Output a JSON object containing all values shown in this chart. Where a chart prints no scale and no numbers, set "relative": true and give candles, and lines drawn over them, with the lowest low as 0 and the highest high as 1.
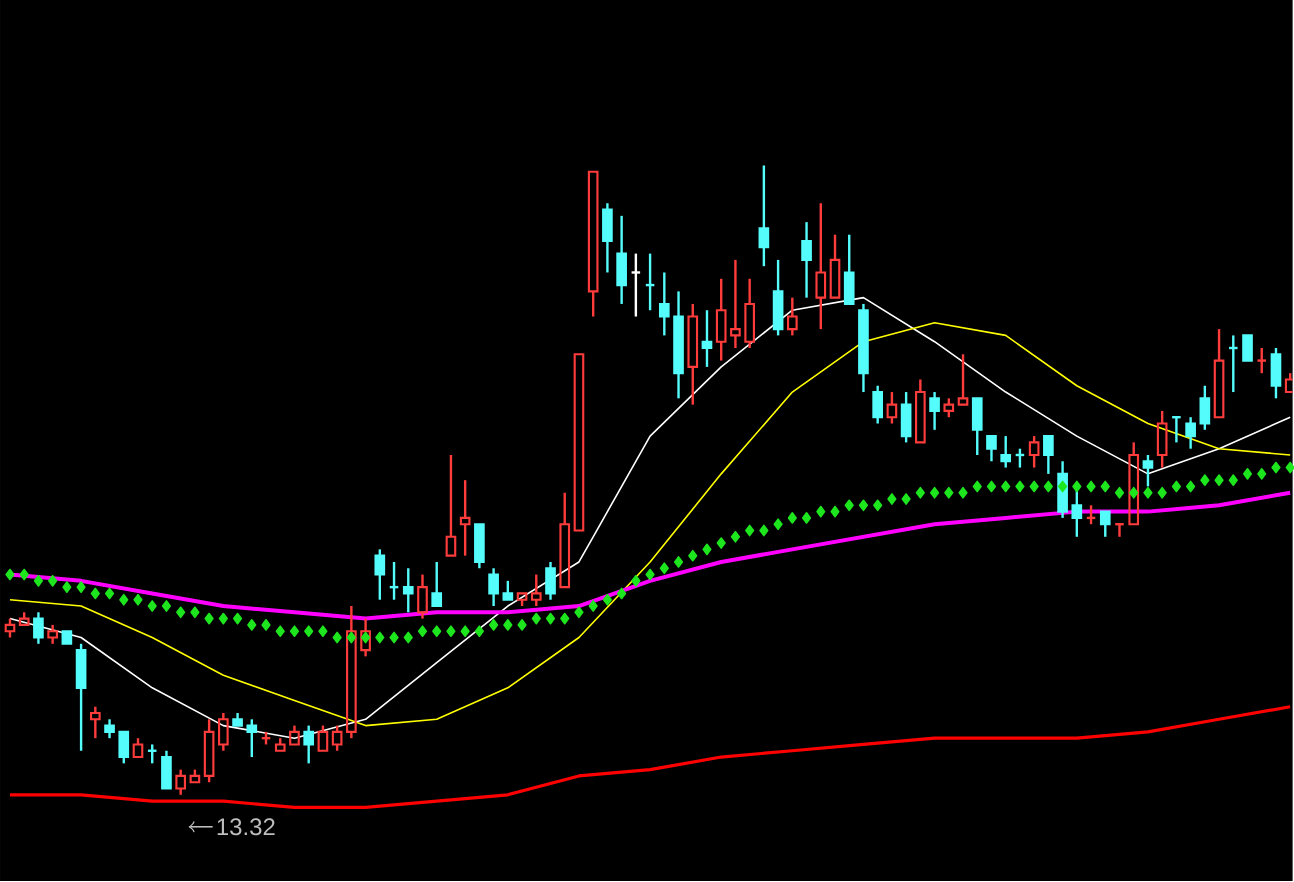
{
  "chart_data": {
    "type": "candlestick",
    "relative": true,
    "categories": [
      null,
      null,
      null,
      null,
      null,
      null,
      null,
      null,
      null,
      null,
      null,
      null,
      null,
      null,
      null,
      null,
      null,
      null,
      null,
      null,
      null,
      null,
      null,
      null,
      null,
      null,
      null,
      null,
      null,
      null,
      null,
      null,
      null,
      null,
      null,
      null,
      null,
      null,
      null,
      null,
      null,
      null,
      null,
      null,
      null,
      null,
      null,
      null,
      null,
      null,
      null,
      null,
      null,
      null,
      null,
      null,
      null,
      null,
      null,
      null,
      null,
      null,
      null,
      null,
      null,
      null,
      null,
      null,
      null,
      null,
      null,
      null,
      null,
      null,
      null,
      null,
      null,
      null,
      null,
      null,
      null,
      null,
      null,
      null,
      null,
      null,
      null,
      null,
      null,
      null,
      null
    ],
    "ohlc": [
      [
        0.26,
        0.28,
        0.25,
        0.27
      ],
      [
        0.27,
        0.29,
        0.27,
        0.28
      ],
      [
        0.28,
        0.29,
        0.24,
        0.25
      ],
      [
        0.25,
        0.27,
        0.24,
        0.26
      ],
      [
        0.26,
        0.26,
        0.24,
        0.24
      ],
      [
        0.23,
        0.24,
        0.07,
        0.17
      ],
      [
        0.12,
        0.14,
        0.09,
        0.13
      ],
      [
        0.11,
        0.12,
        0.09,
        0.1
      ],
      [
        0.1,
        0.1,
        0.05,
        0.06
      ],
      [
        0.06,
        0.09,
        0.06,
        0.08
      ],
      [
        0.07,
        0.08,
        0.05,
        0.07
      ],
      [
        0.06,
        0.07,
        0.01,
        0.01
      ],
      [
        0.01,
        0.04,
        0.0,
        0.03
      ],
      [
        0.02,
        0.04,
        0.02,
        0.03
      ],
      [
        0.03,
        0.12,
        0.02,
        0.1
      ],
      [
        0.08,
        0.13,
        0.07,
        0.12
      ],
      [
        0.12,
        0.13,
        0.11,
        0.11
      ],
      [
        0.11,
        0.12,
        0.06,
        0.1
      ],
      [
        0.09,
        0.1,
        0.08,
        0.09
      ],
      [
        0.07,
        0.09,
        0.07,
        0.08
      ],
      [
        0.08,
        0.11,
        0.08,
        0.1
      ],
      [
        0.1,
        0.11,
        0.05,
        0.08
      ],
      [
        0.07,
        0.11,
        0.07,
        0.1
      ],
      [
        0.08,
        0.11,
        0.07,
        0.1
      ],
      [
        0.1,
        0.3,
        0.09,
        0.26
      ],
      [
        0.23,
        0.28,
        0.22,
        0.26
      ],
      [
        0.38,
        0.39,
        0.31,
        0.35
      ],
      [
        0.33,
        0.37,
        0.31,
        0.33
      ],
      [
        0.33,
        0.36,
        0.29,
        0.32
      ],
      [
        0.29,
        0.35,
        0.28,
        0.33
      ],
      [
        0.32,
        0.37,
        0.3,
        0.3
      ],
      [
        0.38,
        0.54,
        0.38,
        0.41
      ],
      [
        0.43,
        0.5,
        0.38,
        0.44
      ],
      [
        0.43,
        0.43,
        0.36,
        0.37
      ],
      [
        0.35,
        0.36,
        0.3,
        0.32
      ],
      [
        0.32,
        0.34,
        0.31,
        0.31
      ],
      [
        0.31,
        0.32,
        0.3,
        0.32
      ],
      [
        0.31,
        0.35,
        0.3,
        0.32
      ],
      [
        0.36,
        0.37,
        0.31,
        0.32
      ],
      [
        0.33,
        0.48,
        0.33,
        0.43
      ],
      [
        0.42,
        0.7,
        0.42,
        0.7
      ],
      [
        0.8,
        0.99,
        0.76,
        0.99
      ],
      [
        0.93,
        0.94,
        0.83,
        0.88
      ],
      [
        0.86,
        0.92,
        0.78,
        0.81
      ],
      [
        0.83,
        0.86,
        0.76,
        0.83
      ],
      [
        0.81,
        0.86,
        0.77,
        0.81
      ],
      [
        0.78,
        0.83,
        0.73,
        0.76
      ],
      [
        0.76,
        0.8,
        0.63,
        0.67
      ],
      [
        0.68,
        0.78,
        0.62,
        0.76
      ],
      [
        0.72,
        0.77,
        0.68,
        0.71
      ],
      [
        0.72,
        0.82,
        0.69,
        0.77
      ],
      [
        0.73,
        0.85,
        0.71,
        0.74
      ],
      [
        0.72,
        0.82,
        0.71,
        0.78
      ],
      [
        0.9,
        1.0,
        0.84,
        0.87
      ],
      [
        0.8,
        0.85,
        0.73,
        0.74
      ],
      [
        0.74,
        0.79,
        0.73,
        0.76
      ],
      [
        0.88,
        0.91,
        0.79,
        0.85
      ],
      [
        0.79,
        0.94,
        0.74,
        0.83
      ],
      [
        0.79,
        0.89,
        0.79,
        0.85
      ],
      [
        0.83,
        0.89,
        0.78,
        0.78
      ],
      [
        0.77,
        0.78,
        0.64,
        0.67
      ],
      [
        0.64,
        0.65,
        0.59,
        0.6
      ],
      [
        0.6,
        0.64,
        0.59,
        0.62
      ],
      [
        0.62,
        0.64,
        0.56,
        0.57
      ],
      [
        0.56,
        0.66,
        0.56,
        0.64
      ],
      [
        0.63,
        0.64,
        0.58,
        0.61
      ],
      [
        0.61,
        0.63,
        0.6,
        0.62
      ],
      [
        0.62,
        0.7,
        0.62,
        0.63
      ],
      [
        0.63,
        0.63,
        0.54,
        0.58
      ],
      [
        0.57,
        0.57,
        0.53,
        0.55
      ],
      [
        0.54,
        0.57,
        0.52,
        0.53
      ],
      [
        0.54,
        0.55,
        0.52,
        0.54
      ],
      [
        0.54,
        0.57,
        0.52,
        0.56
      ],
      [
        0.57,
        0.57,
        0.51,
        0.54
      ],
      [
        0.51,
        0.53,
        0.44,
        0.45
      ],
      [
        0.46,
        0.49,
        0.41,
        0.44
      ],
      [
        0.44,
        0.46,
        0.43,
        0.44
      ],
      [
        0.45,
        0.45,
        0.41,
        0.43
      ],
      [
        0.43,
        0.43,
        0.41,
        0.43
      ],
      [
        0.43,
        0.56,
        0.43,
        0.54
      ],
      [
        0.53,
        0.54,
        0.49,
        0.52
      ],
      [
        0.54,
        0.61,
        0.52,
        0.59
      ],
      [
        0.6,
        0.6,
        0.56,
        0.6
      ],
      [
        0.59,
        0.6,
        0.55,
        0.57
      ],
      [
        0.63,
        0.65,
        0.58,
        0.59
      ],
      [
        0.6,
        0.74,
        0.6,
        0.69
      ],
      [
        0.71,
        0.73,
        0.64,
        0.71
      ],
      [
        0.73,
        0.73,
        0.69,
        0.69
      ],
      [
        0.69,
        0.71,
        0.67,
        0.69
      ],
      [
        0.7,
        0.71,
        0.63,
        0.65
      ],
      [
        0.64,
        0.67,
        0.64,
        0.66
      ]
    ],
    "colors": [
      "#ff3c3c",
      "#ff3c3c",
      "#54fcfc",
      "#ff3c3c",
      "#54fcfc",
      "#54fcfc",
      "#ff3c3c",
      "#54fcfc",
      "#54fcfc",
      "#ff3c3c",
      "#54fcfc",
      "#54fcfc",
      "#ff3c3c",
      "#ff3c3c",
      "#ff3c3c",
      "#ff3c3c",
      "#54fcfc",
      "#54fcfc",
      "#ff3c3c",
      "#ff3c3c",
      "#ff3c3c",
      "#54fcfc",
      "#ff3c3c",
      "#ff3c3c",
      "#ff3c3c",
      "#ff3c3c",
      "#54fcfc",
      "#54fcfc",
      "#54fcfc",
      "#ff3c3c",
      "#54fcfc",
      "#ff3c3c",
      "#ff3c3c",
      "#54fcfc",
      "#54fcfc",
      "#54fcfc",
      "#ff3c3c",
      "#ff3c3c",
      "#54fcfc",
      "#ff3c3c",
      "#ff3c3c",
      "#ff3c3c",
      "#54fcfc",
      "#54fcfc",
      "#ffffff",
      "#54fcfc",
      "#54fcfc",
      "#54fcfc",
      "#ff3c3c",
      "#54fcfc",
      "#ff3c3c",
      "#ff3c3c",
      "#ff3c3c",
      "#54fcfc",
      "#54fcfc",
      "#ff3c3c",
      "#54fcfc",
      "#ff3c3c",
      "#ff3c3c",
      "#54fcfc",
      "#54fcfc",
      "#54fcfc",
      "#ff3c3c",
      "#54fcfc",
      "#ff3c3c",
      "#54fcfc",
      "#ff3c3c",
      "#ff3c3c",
      "#54fcfc",
      "#54fcfc",
      "#54fcfc",
      "#54fcfc",
      "#ff3c3c",
      "#54fcfc",
      "#54fcfc",
      "#54fcfc",
      "#ff3c3c",
      "#54fcfc",
      "#ff3c3c",
      "#ff3c3c",
      "#54fcfc",
      "#ff3c3c",
      "#54fcfc",
      "#54fcfc",
      "#54fcfc",
      "#ff3c3c",
      "#54fcfc",
      "#54fcfc",
      "#ff3c3c",
      "#54fcfc",
      "#ff3c3c"
    ],
    "series": [
      {
        "type": "line",
        "color": "#ffffff",
        "values": [
          0.28,
          null,
          null,
          null,
          null,
          0.25,
          null,
          null,
          null,
          null,
          0.17,
          null,
          null,
          null,
          null,
          0.11,
          null,
          null,
          null,
          null,
          0.09,
          null,
          null,
          null,
          null,
          0.12,
          null,
          null,
          null,
          null,
          0.21,
          null,
          null,
          null,
          null,
          0.3,
          null,
          null,
          null,
          null,
          0.37,
          0.41,
          null,
          0.49,
          null,
          0.57,
          null,
          null,
          null,
          null,
          0.68,
          null,
          null,
          null,
          null,
          0.77,
          null,
          null,
          null,
          null,
          0.79,
          null,
          null,
          null,
          null,
          0.72,
          null,
          null,
          null,
          null,
          0.64,
          null,
          null,
          null,
          null,
          0.57,
          null,
          null,
          null,
          null,
          0.51,
          null,
          null,
          null,
          null,
          0.55,
          null,
          null,
          null,
          null,
          0.6
        ]
      },
      {
        "type": "line",
        "color": "#ffff00",
        "values": [
          0.31,
          null,
          null,
          null,
          null,
          0.3,
          null,
          null,
          null,
          null,
          0.25,
          null,
          null,
          null,
          null,
          0.19,
          null,
          null,
          null,
          null,
          0.15,
          null,
          null,
          null,
          null,
          0.11,
          null,
          null,
          null,
          null,
          0.12,
          null,
          null,
          null,
          null,
          0.17,
          null,
          null,
          null,
          null,
          0.25,
          null,
          null,
          null,
          null,
          0.37,
          null,
          null,
          null,
          null,
          0.51,
          null,
          null,
          null,
          null,
          0.64,
          null,
          null,
          null,
          null,
          0.72,
          null,
          null,
          null,
          null,
          0.75,
          null,
          null,
          null,
          null,
          0.73,
          null,
          null,
          null,
          null,
          0.65,
          null,
          null,
          null,
          null,
          0.59,
          null,
          null,
          null,
          null,
          0.55,
          null,
          null,
          null,
          null,
          0.54
        ]
      },
      {
        "type": "line",
        "color": "#ff00ff",
        "values": [
          0.35,
          null,
          null,
          null,
          null,
          0.34,
          null,
          null,
          null,
          null,
          0.32,
          null,
          null,
          null,
          null,
          0.3,
          null,
          null,
          null,
          null,
          0.29,
          null,
          null,
          null,
          null,
          0.28,
          null,
          null,
          null,
          null,
          0.29,
          null,
          null,
          null,
          null,
          0.29,
          null,
          null,
          null,
          null,
          0.3,
          null,
          null,
          null,
          null,
          0.34,
          null,
          null,
          null,
          null,
          0.37,
          null,
          null,
          null,
          null,
          0.39,
          null,
          null,
          null,
          null,
          0.41,
          null,
          null,
          null,
          null,
          0.43,
          null,
          null,
          null,
          null,
          0.44,
          null,
          null,
          null,
          null,
          0.45,
          null,
          null,
          null,
          null,
          0.45,
          null,
          null,
          null,
          null,
          0.46,
          null,
          null,
          null,
          null,
          0.48
        ]
      },
      {
        "type": "scatter",
        "color": "#1ee61e",
        "marker": "diamond",
        "values": [
          0.35,
          0.35,
          0.34,
          0.34,
          0.33,
          0.33,
          0.32,
          0.32,
          0.31,
          0.31,
          0.3,
          0.3,
          0.29,
          0.29,
          0.28,
          0.28,
          0.28,
          0.27,
          0.27,
          0.26,
          0.26,
          0.26,
          0.26,
          0.25,
          0.25,
          0.25,
          0.25,
          0.25,
          0.25,
          0.26,
          0.26,
          0.26,
          0.26,
          0.26,
          0.27,
          0.27,
          0.27,
          0.28,
          0.28,
          0.28,
          0.29,
          0.3,
          0.31,
          0.32,
          0.34,
          0.35,
          0.36,
          0.37,
          0.38,
          0.39,
          0.4,
          0.41,
          0.42,
          0.42,
          0.43,
          0.44,
          0.44,
          0.45,
          0.45,
          0.46,
          0.46,
          0.46,
          0.47,
          0.47,
          0.48,
          0.48,
          0.48,
          0.48,
          0.49,
          0.49,
          0.49,
          0.49,
          0.49,
          0.49,
          0.49,
          0.49,
          0.49,
          0.49,
          0.48,
          0.48,
          0.48,
          0.48,
          0.49,
          0.49,
          0.5,
          0.5,
          0.5,
          0.51,
          0.51,
          0.52,
          0.52
        ]
      },
      {
        "type": "line",
        "color": "#ff0000",
        "values": [
          0.0,
          null,
          null,
          null,
          null,
          0.0,
          null,
          null,
          null,
          null,
          -0.01,
          null,
          null,
          null,
          null,
          -0.01,
          null,
          null,
          null,
          null,
          -0.02,
          null,
          null,
          null,
          null,
          -0.02,
          null,
          null,
          null,
          null,
          -0.01,
          null,
          null,
          null,
          null,
          0.0,
          null,
          null,
          null,
          null,
          0.03,
          null,
          null,
          null,
          null,
          0.04,
          null,
          null,
          null,
          null,
          0.06,
          null,
          null,
          null,
          null,
          0.07,
          null,
          null,
          null,
          null,
          0.08,
          null,
          null,
          null,
          null,
          0.09,
          null,
          null,
          null,
          null,
          0.09,
          null,
          null,
          null,
          null,
          0.09,
          null,
          null,
          null,
          null,
          0.1,
          null,
          null,
          null,
          null,
          0.12,
          null,
          null,
          null,
          null,
          0.14
        ]
      }
    ],
    "annotations": [
      "13.32"
    ]
  }
}
